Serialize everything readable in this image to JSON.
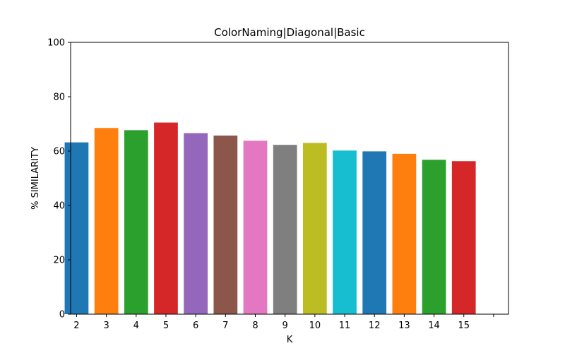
{
  "chart_data": {
    "type": "bar",
    "title": "ColorNaming|Diagonal|Basic",
    "xlabel": "K",
    "ylabel": "% SIMILARITY",
    "categories": [
      "2",
      "3",
      "4",
      "5",
      "6",
      "7",
      "8",
      "9",
      "10",
      "11",
      "12",
      "13",
      "14",
      "15"
    ],
    "values": [
      63.2,
      68.5,
      67.7,
      70.5,
      66.6,
      65.7,
      63.8,
      62.3,
      63.0,
      60.2,
      59.9,
      59.0,
      56.8,
      56.3
    ],
    "colors": [
      "#1f77b4",
      "#ff7f0e",
      "#2ca02c",
      "#d62728",
      "#9467bd",
      "#8c564b",
      "#e377c2",
      "#7f7f7f",
      "#bcbd22",
      "#17becf",
      "#1f77b4",
      "#ff7f0e",
      "#2ca02c",
      "#d62728"
    ],
    "ylim": [
      0,
      100
    ],
    "yticks": [
      0,
      20,
      40,
      60,
      80,
      100
    ],
    "grid": false,
    "legend": false
  }
}
